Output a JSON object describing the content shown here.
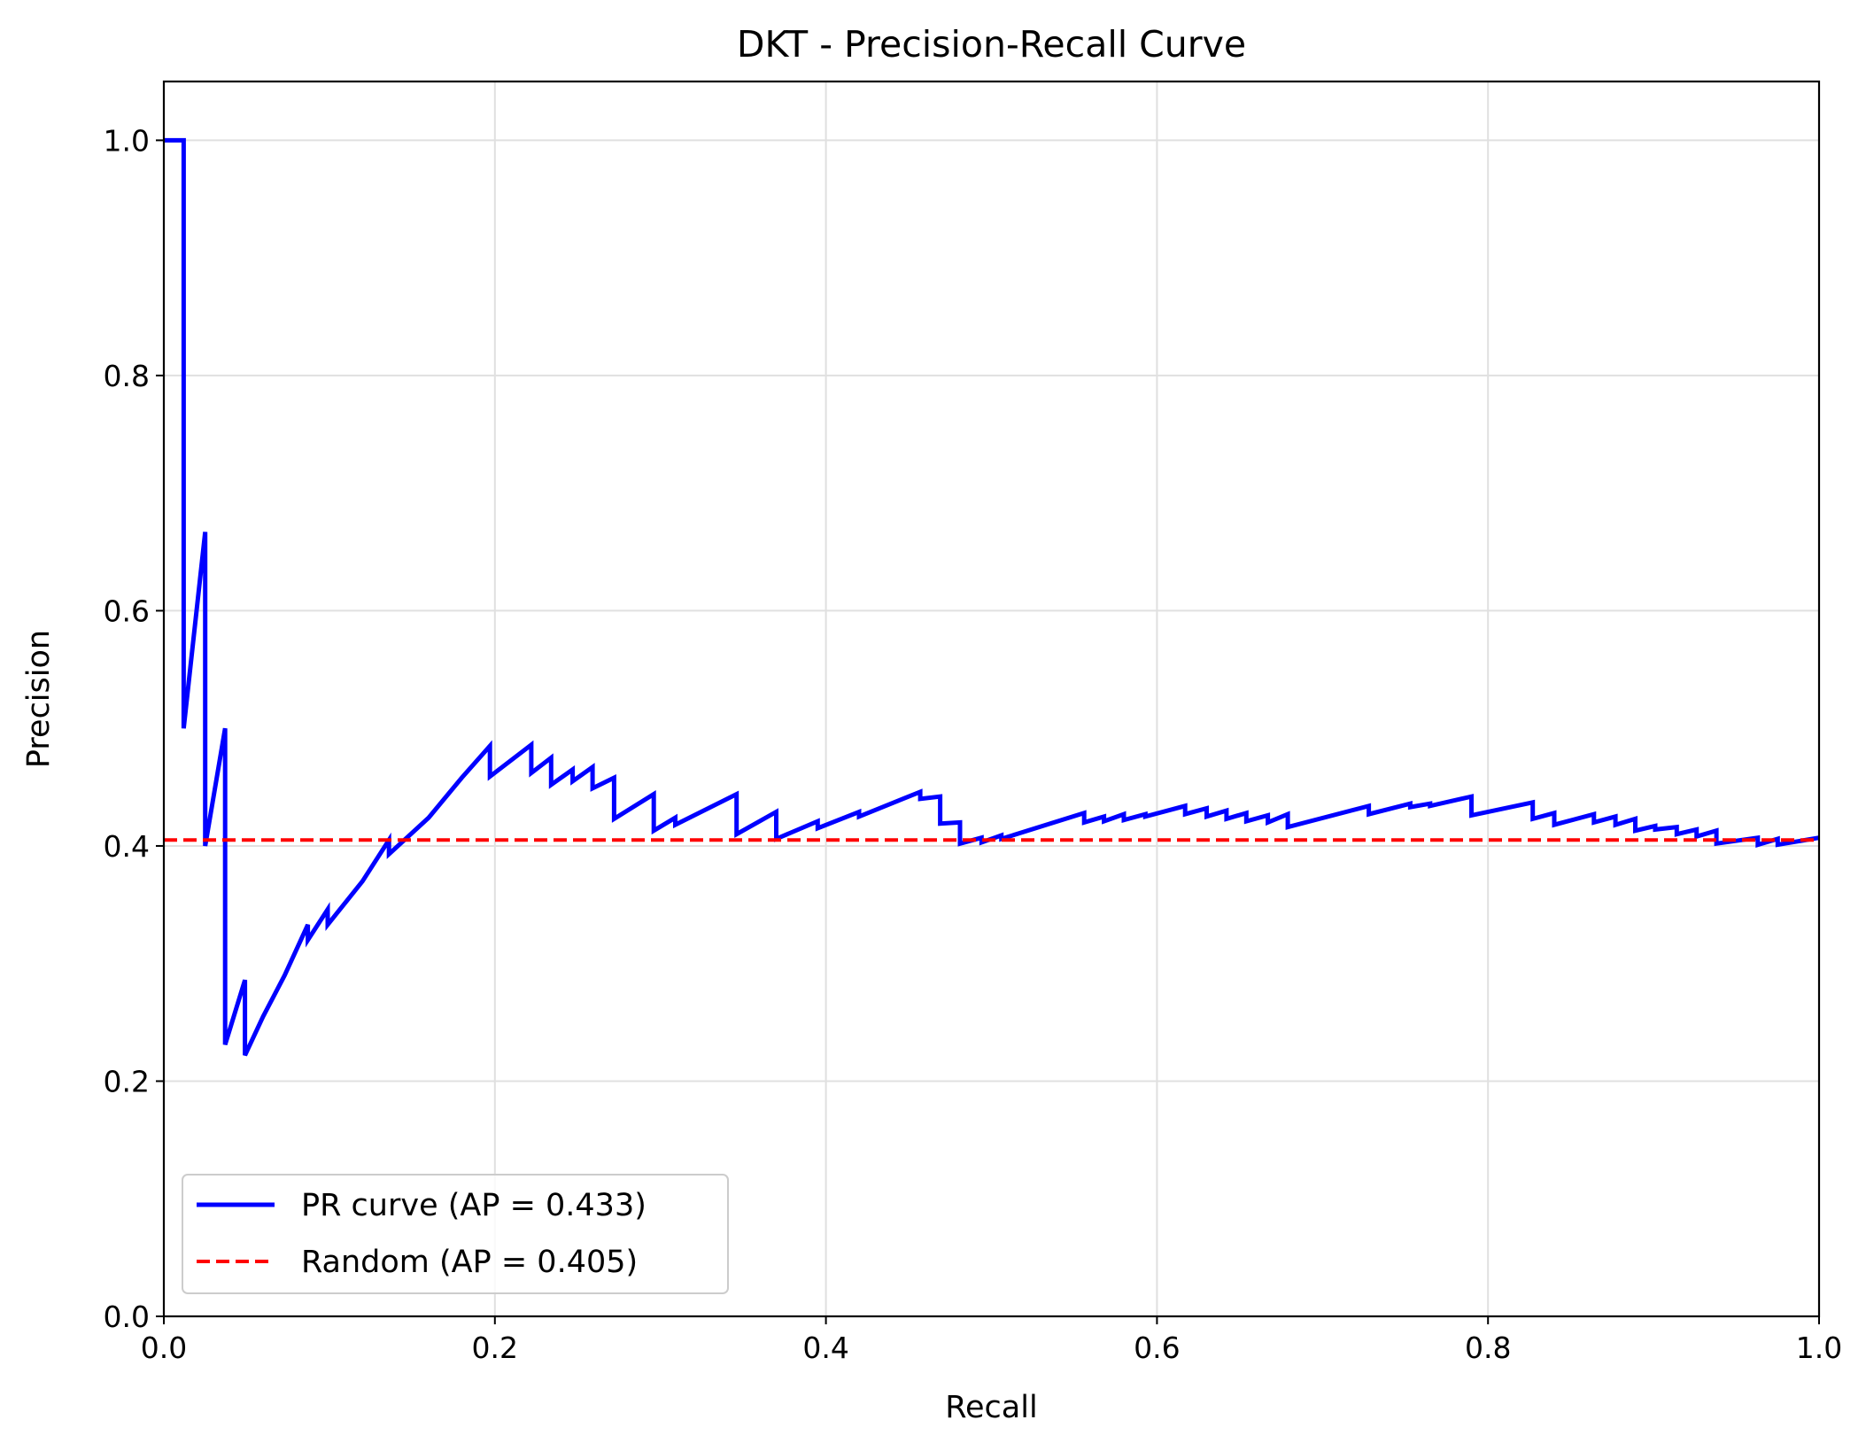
{
  "chart_data": {
    "type": "line",
    "title": "DKT - Precision-Recall Curve",
    "xlabel": "Recall",
    "ylabel": "Precision",
    "xlim": [
      0.0,
      1.0
    ],
    "ylim": [
      0.0,
      1.05
    ],
    "xticks": [
      "0.0",
      "0.2",
      "0.4",
      "0.6",
      "0.8",
      "1.0"
    ],
    "yticks": [
      "0.0",
      "0.2",
      "0.4",
      "0.6",
      "0.8",
      "1.0"
    ],
    "grid": true,
    "legend_position": "lower-left",
    "series": [
      {
        "name": "PR curve (AP = 0.433)",
        "color": "#0000ff",
        "style": "solid",
        "x": [
          0.0,
          0.012,
          0.012,
          0.025,
          0.025,
          0.037,
          0.037,
          0.049,
          0.049,
          0.06,
          0.073,
          0.087,
          0.087,
          0.099,
          0.099,
          0.12,
          0.136,
          0.136,
          0.16,
          0.18,
          0.197,
          0.197,
          0.222,
          0.222,
          0.234,
          0.234,
          0.247,
          0.247,
          0.259,
          0.259,
          0.272,
          0.272,
          0.296,
          0.296,
          0.309,
          0.309,
          0.346,
          0.346,
          0.37,
          0.37,
          0.395,
          0.395,
          0.42,
          0.42,
          0.457,
          0.457,
          0.469,
          0.469,
          0.481,
          0.481,
          0.494,
          0.494,
          0.506,
          0.506,
          0.556,
          0.556,
          0.568,
          0.568,
          0.58,
          0.58,
          0.593,
          0.593,
          0.617,
          0.617,
          0.63,
          0.63,
          0.642,
          0.642,
          0.654,
          0.654,
          0.667,
          0.667,
          0.679,
          0.679,
          0.728,
          0.728,
          0.753,
          0.753,
          0.765,
          0.765,
          0.79,
          0.79,
          0.827,
          0.827,
          0.84,
          0.84,
          0.864,
          0.864,
          0.877,
          0.877,
          0.889,
          0.889,
          0.901,
          0.901,
          0.914,
          0.914,
          0.926,
          0.926,
          0.938,
          0.938,
          0.963,
          0.963,
          0.975,
          0.975,
          1.0
        ],
        "y": [
          1.0,
          1.0,
          0.5,
          0.667,
          0.4,
          0.5,
          0.231,
          0.286,
          0.222,
          0.255,
          0.29,
          0.333,
          0.32,
          0.346,
          0.333,
          0.37,
          0.405,
          0.393,
          0.424,
          0.458,
          0.485,
          0.459,
          0.486,
          0.462,
          0.475,
          0.452,
          0.465,
          0.455,
          0.467,
          0.449,
          0.458,
          0.423,
          0.444,
          0.413,
          0.424,
          0.418,
          0.444,
          0.41,
          0.429,
          0.406,
          0.421,
          0.415,
          0.429,
          0.425,
          0.446,
          0.44,
          0.442,
          0.419,
          0.42,
          0.402,
          0.407,
          0.403,
          0.409,
          0.406,
          0.428,
          0.42,
          0.425,
          0.421,
          0.427,
          0.422,
          0.427,
          0.425,
          0.434,
          0.427,
          0.432,
          0.425,
          0.43,
          0.423,
          0.428,
          0.421,
          0.426,
          0.42,
          0.427,
          0.416,
          0.434,
          0.427,
          0.436,
          0.433,
          0.436,
          0.434,
          0.442,
          0.426,
          0.437,
          0.423,
          0.428,
          0.418,
          0.427,
          0.42,
          0.425,
          0.418,
          0.423,
          0.413,
          0.417,
          0.414,
          0.416,
          0.41,
          0.414,
          0.408,
          0.413,
          0.402,
          0.407,
          0.401,
          0.406,
          0.401,
          0.407
        ]
      },
      {
        "name": "Random (AP = 0.405)",
        "color": "#ff0000",
        "style": "dashed",
        "x": [
          0.0,
          1.0
        ],
        "y": [
          0.405,
          0.405
        ]
      }
    ]
  }
}
